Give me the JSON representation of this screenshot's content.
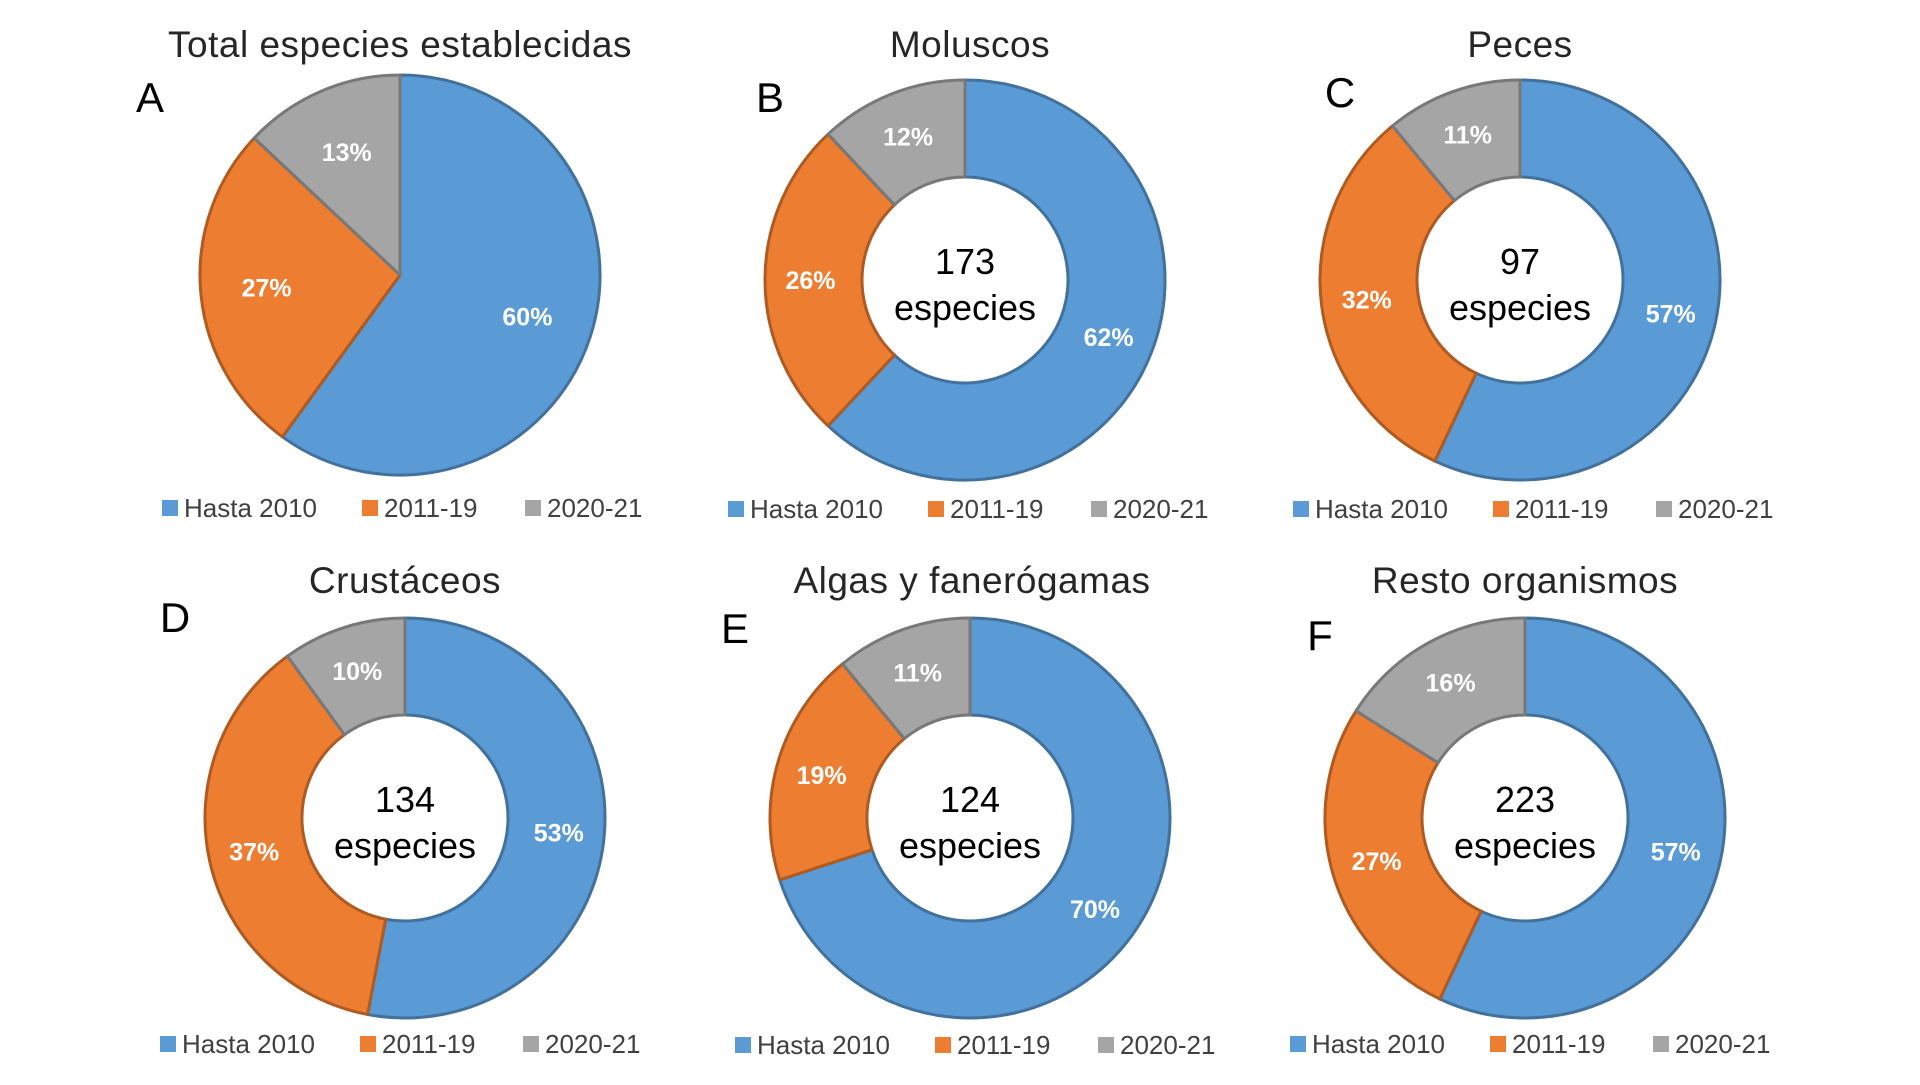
{
  "legend": [
    "Hasta 2010",
    "2011-19",
    "2020-21"
  ],
  "colors": [
    "#5b9bd5",
    "#ed7d31",
    "#a5a5a5"
  ],
  "chart_data": [
    {
      "type": "pie",
      "panel": "A",
      "title": "Total especies establecidas",
      "categories": [
        "Hasta 2010",
        "2011-19",
        "2020-21"
      ],
      "values": [
        60,
        27,
        13
      ],
      "labels": [
        "60%",
        "27%",
        "13%"
      ],
      "center_count": "",
      "center_unit": ""
    },
    {
      "type": "pie",
      "panel": "B",
      "title": "Moluscos",
      "categories": [
        "Hasta 2010",
        "2011-19",
        "2020-21"
      ],
      "values": [
        62,
        26,
        12
      ],
      "labels": [
        "62%",
        "26%",
        "12%"
      ],
      "center_count": "173",
      "center_unit": "especies"
    },
    {
      "type": "pie",
      "panel": "C",
      "title": "Peces",
      "categories": [
        "Hasta 2010",
        "2011-19",
        "2020-21"
      ],
      "values": [
        57,
        32,
        11
      ],
      "labels": [
        "57%",
        "32%",
        "11%"
      ],
      "center_count": "97",
      "center_unit": "especies"
    },
    {
      "type": "pie",
      "panel": "D",
      "title": "Crustáceos",
      "categories": [
        "Hasta 2010",
        "2011-19",
        "2020-21"
      ],
      "values": [
        53,
        37,
        10
      ],
      "labels": [
        "53%",
        "37%",
        "10%"
      ],
      "center_count": "134",
      "center_unit": "especies"
    },
    {
      "type": "pie",
      "panel": "E",
      "title": "Algas y fanerógamas",
      "categories": [
        "Hasta 2010",
        "2011-19",
        "2020-21"
      ],
      "values": [
        70,
        19,
        11
      ],
      "labels": [
        "70%",
        "19%",
        "11%"
      ],
      "center_count": "124",
      "center_unit": "especies"
    },
    {
      "type": "pie",
      "panel": "F",
      "title": "Resto organismos",
      "categories": [
        "Hasta 2010",
        "2011-19",
        "2020-21"
      ],
      "values": [
        57,
        27,
        16
      ],
      "labels": [
        "57%",
        "27%",
        "16%"
      ],
      "center_count": "223",
      "center_unit": "especies"
    }
  ]
}
